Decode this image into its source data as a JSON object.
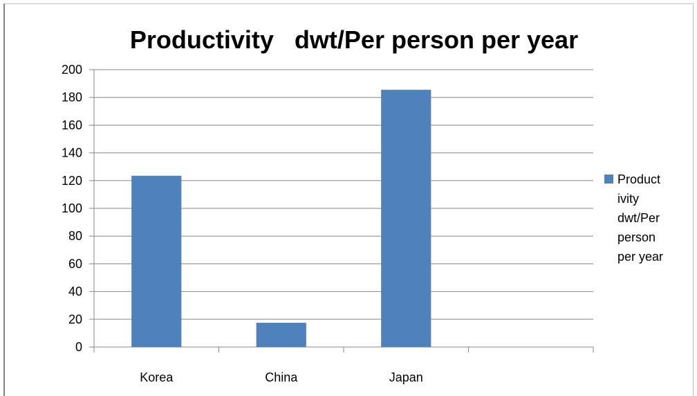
{
  "chart_data": {
    "type": "bar",
    "title": "Productivity   dwt/Per person per year",
    "categories": [
      "Korea",
      "China",
      "Japan",
      ""
    ],
    "series": [
      {
        "name": "Productivity dwt/Per person per year",
        "color": "#4f81bd",
        "values": [
          123.5,
          17.5,
          185.5,
          null
        ]
      }
    ],
    "ylim": [
      0,
      200
    ],
    "yticks": [
      0,
      20,
      40,
      60,
      80,
      100,
      120,
      140,
      160,
      180,
      200
    ],
    "grid": true,
    "legend": {
      "position": "right",
      "lines": [
        "Product",
        "ivity",
        "dwt/Per",
        "person",
        "per year"
      ]
    }
  }
}
